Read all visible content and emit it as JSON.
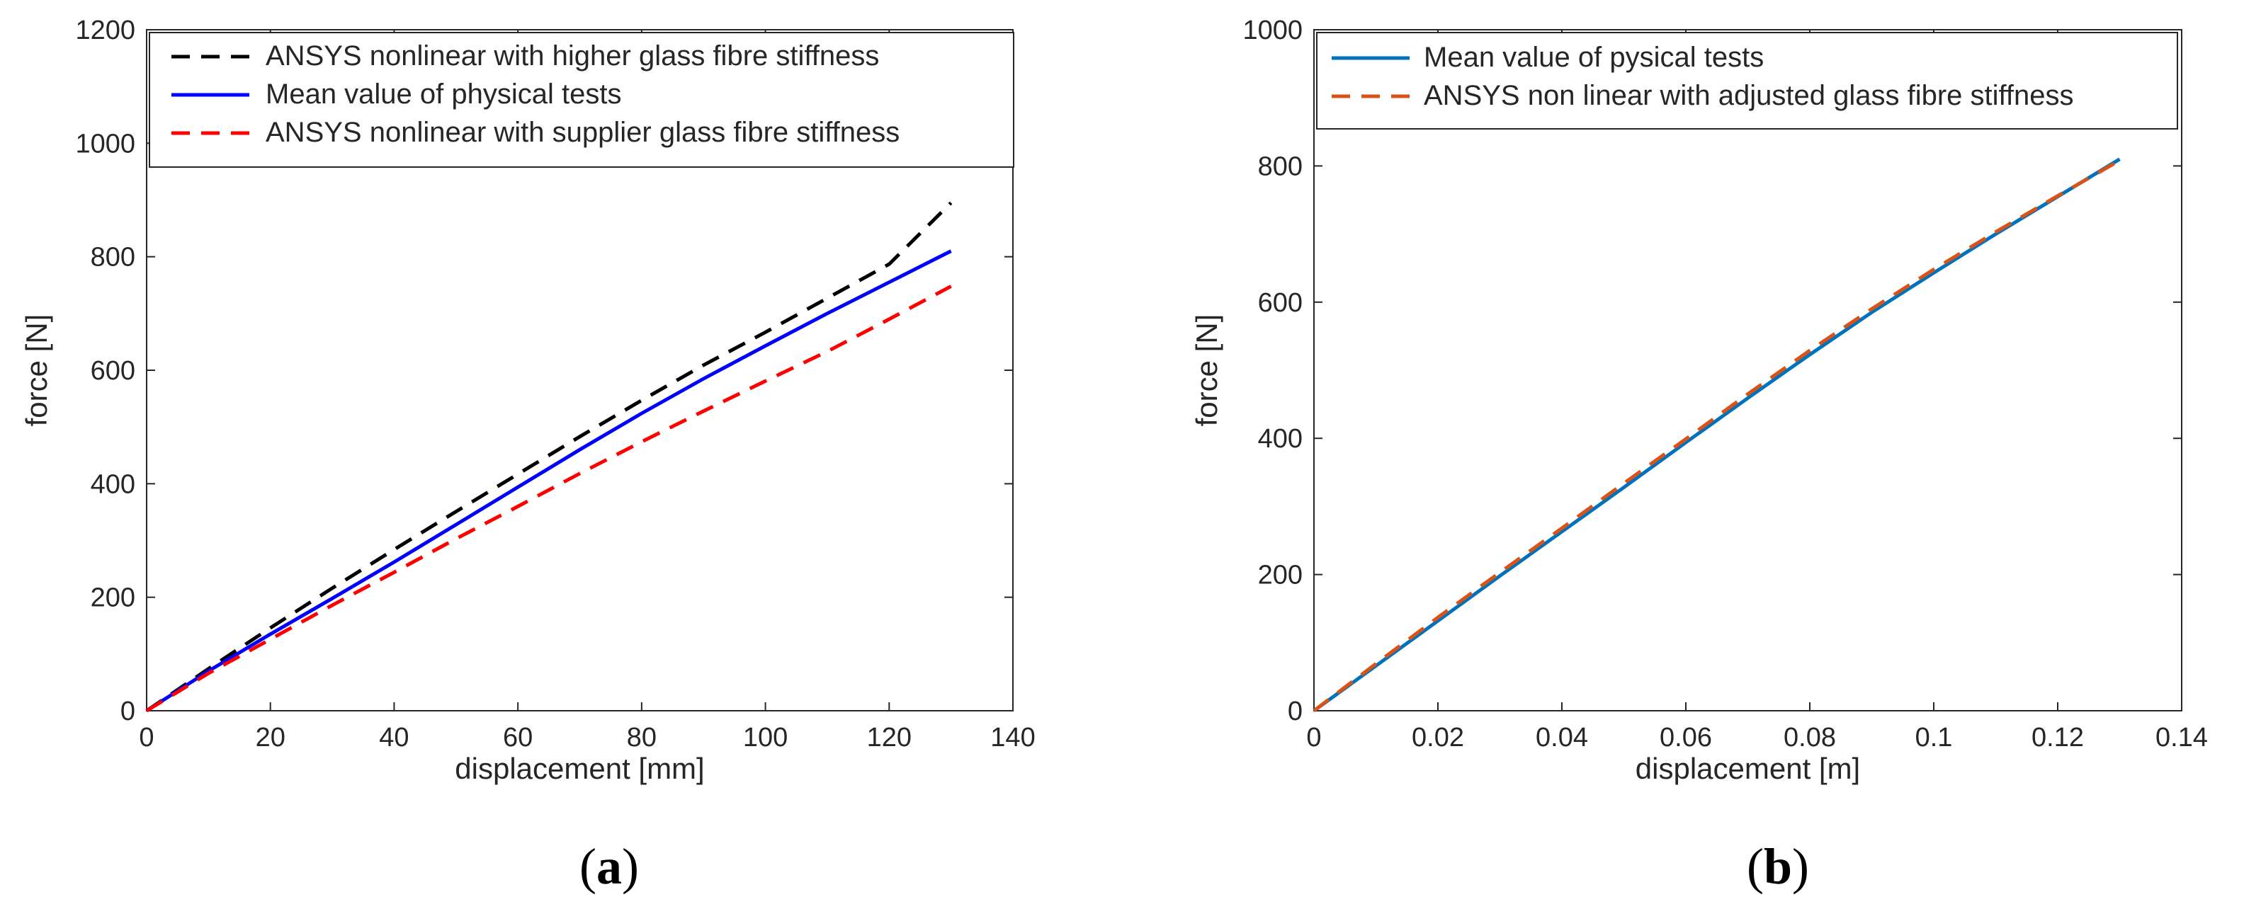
{
  "chart_data": [
    {
      "type": "line",
      "panel_label": "a",
      "xlabel": "displacement [mm]",
      "ylabel": "force [N]",
      "xlim": [
        0,
        140
      ],
      "ylim": [
        0,
        1200
      ],
      "xticks": [
        0,
        20,
        40,
        60,
        80,
        100,
        120,
        140
      ],
      "yticks": [
        0,
        200,
        400,
        600,
        800,
        1000,
        1200
      ],
      "xtick_labels": [
        "0",
        "20",
        "40",
        "60",
        "80",
        "100",
        "120",
        "140"
      ],
      "ytick_labels": [
        "0",
        "200",
        "400",
        "600",
        "800",
        "1000",
        "1200"
      ],
      "grid": false,
      "legend_position": "top",
      "series": [
        {
          "name": "ANSYS nonlinear with higher glass fibre stiffness",
          "color": "#000000",
          "style": "dashed",
          "x": [
            0,
            10,
            20,
            30,
            40,
            50,
            60,
            70,
            80,
            90,
            100,
            110,
            120,
            130
          ],
          "y": [
            0,
            74,
            146,
            216,
            284,
            351,
            417,
            483,
            547,
            609,
            667,
            727,
            787,
            895
          ]
        },
        {
          "name": "Mean value of physical tests",
          "color": "#0000ff",
          "style": "solid",
          "x": [
            0,
            10,
            20,
            30,
            40,
            50,
            60,
            70,
            80,
            90,
            100,
            110,
            120,
            130
          ],
          "y": [
            0,
            70,
            135,
            198,
            262,
            328,
            394,
            460,
            524,
            585,
            643,
            700,
            755,
            810
          ]
        },
        {
          "name": "ANSYS nonlinear with supplier glass fibre stiffness",
          "color": "#ff0000",
          "style": "dashed",
          "x": [
            0,
            10,
            20,
            30,
            40,
            50,
            60,
            70,
            80,
            90,
            100,
            110,
            120,
            130
          ],
          "y": [
            0,
            66,
            126,
            186,
            244,
            303,
            360,
            418,
            474,
            528,
            581,
            633,
            690,
            748
          ]
        }
      ]
    },
    {
      "type": "line",
      "panel_label": "b",
      "xlabel": "displacement [m]",
      "ylabel": "force [N]",
      "xlim": [
        0,
        0.14
      ],
      "ylim": [
        0,
        1000
      ],
      "xticks": [
        0,
        0.02,
        0.04,
        0.06,
        0.08,
        0.1,
        0.12,
        0.14
      ],
      "yticks": [
        0,
        200,
        400,
        600,
        800,
        1000
      ],
      "xtick_labels": [
        "0",
        "0.02",
        "0.04",
        "0.06",
        "0.08",
        "0.1",
        "0.12",
        "0.14"
      ],
      "ytick_labels": [
        "0",
        "200",
        "400",
        "600",
        "800",
        "1000"
      ],
      "grid": false,
      "legend_position": "top",
      "series": [
        {
          "name": "Mean value of pysical tests",
          "color": "#0072bd",
          "style": "solid",
          "x": [
            0,
            0.01,
            0.02,
            0.03,
            0.04,
            0.05,
            0.06,
            0.07,
            0.08,
            0.09,
            0.1,
            0.11,
            0.12,
            0.13
          ],
          "y": [
            0,
            66,
            132,
            198,
            263,
            328,
            394,
            459,
            523,
            585,
            643,
            700,
            755,
            810
          ]
        },
        {
          "name": "ANSYS non linear with adjusted glass fibre stiffness",
          "color": "#d95319",
          "style": "dashed",
          "x": [
            0,
            0.01,
            0.02,
            0.03,
            0.04,
            0.05,
            0.06,
            0.07,
            0.08,
            0.09,
            0.1,
            0.11,
            0.12,
            0.13
          ],
          "y": [
            0,
            69,
            137,
            203,
            268,
            334,
            399,
            465,
            529,
            590,
            648,
            703,
            756,
            808
          ]
        }
      ]
    }
  ]
}
